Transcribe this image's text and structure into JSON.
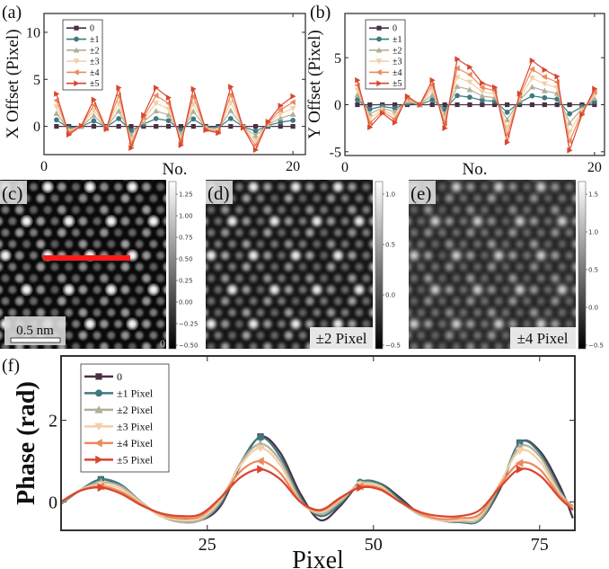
{
  "panels": {
    "a": "(a)",
    "b": "(b)",
    "c": "(c)",
    "d": "(d)",
    "e": "(e)",
    "f": "(f)"
  },
  "series_colors": [
    "#4a3044",
    "#3d7a7e",
    "#b3ae98",
    "#f2cfa6",
    "#ea8a5a",
    "#d9452f"
  ],
  "series_markers": [
    "square",
    "circle",
    "triangle-up",
    "triangle-down",
    "triangle-left",
    "triangle-right"
  ],
  "chart_data": [
    {
      "id": "a",
      "type": "line",
      "xlabel": "No.",
      "ylabel": "X Offset (Pixel)",
      "xlim": [
        0,
        21
      ],
      "ylim": [
        -3,
        12
      ],
      "xticks": [
        0,
        20
      ],
      "yticks": [
        0,
        5,
        10
      ],
      "legend": "top-left",
      "x": [
        1,
        2,
        3,
        4,
        5,
        6,
        7,
        8,
        9,
        10,
        11,
        12,
        13,
        14,
        15,
        16,
        17,
        18,
        19,
        20
      ],
      "series": [
        {
          "name": "0",
          "values": [
            0,
            0,
            0,
            0,
            0,
            0,
            0,
            0,
            0,
            0,
            0,
            0,
            0,
            0,
            0,
            0,
            0,
            0,
            0,
            0
          ]
        },
        {
          "name": "±1",
          "values": [
            0.69,
            -0.17,
            0.01,
            0.57,
            -0.06,
            0.82,
            -0.46,
            0.24,
            0.82,
            0.61,
            -0.4,
            0.79,
            -0.08,
            -0.14,
            0.84,
            -0.03,
            -0.5,
            0.1,
            0.44,
            0.64
          ]
        },
        {
          "name": "±2",
          "values": [
            1.38,
            -0.35,
            0.02,
            1.14,
            -0.12,
            1.64,
            -0.92,
            0.48,
            1.64,
            1.22,
            -0.8,
            1.59,
            -0.16,
            -0.28,
            1.68,
            -0.06,
            -1.0,
            0.2,
            0.88,
            1.28
          ]
        },
        {
          "name": "±3",
          "values": [
            2.07,
            -0.52,
            0.04,
            1.7,
            -0.18,
            2.46,
            -1.38,
            0.72,
            2.46,
            1.84,
            -1.2,
            2.38,
            -0.24,
            -0.42,
            2.52,
            -0.09,
            -1.5,
            0.3,
            1.32,
            1.92
          ]
        },
        {
          "name": "±4",
          "values": [
            2.76,
            -0.7,
            0.05,
            2.27,
            -0.24,
            3.28,
            -1.84,
            0.96,
            3.28,
            2.45,
            -1.6,
            3.18,
            -0.32,
            -0.56,
            3.36,
            -0.12,
            -2.0,
            0.4,
            1.76,
            2.56
          ]
        },
        {
          "name": "±5",
          "values": [
            3.45,
            -0.87,
            0.06,
            2.84,
            -0.3,
            4.1,
            -2.3,
            1.2,
            4.1,
            3.06,
            -2.0,
            3.97,
            -0.4,
            -0.7,
            4.2,
            -0.15,
            -2.5,
            0.5,
            2.2,
            3.2
          ]
        }
      ]
    },
    {
      "id": "b",
      "type": "line",
      "xlabel": "No.",
      "ylabel": "Y Offset (Pixel)",
      "xlim": [
        0,
        20.8
      ],
      "ylim": [
        -5.4,
        9.7
      ],
      "xticks": [
        0,
        20
      ],
      "yticks": [
        -5,
        0,
        5
      ],
      "legend": "top-left",
      "x": [
        1,
        2,
        3,
        4,
        5,
        6,
        7,
        8,
        9,
        10,
        11,
        12,
        13,
        14,
        15,
        16,
        17,
        18,
        19,
        20
      ],
      "series": [
        {
          "name": "0",
          "values": [
            0,
            0,
            0,
            0,
            0,
            0,
            0,
            0,
            0,
            0,
            0,
            0,
            0,
            0,
            0,
            0,
            0,
            0,
            0,
            0
          ]
        },
        {
          "name": "±1",
          "values": [
            0.52,
            -0.48,
            -0.18,
            -0.38,
            0.18,
            0,
            0.52,
            -0.5,
            0.97,
            0.8,
            0.46,
            0.37,
            -0.8,
            0.24,
            0.94,
            0.74,
            0.6,
            -0.97,
            -0.21,
            0.34
          ]
        },
        {
          "name": "±2",
          "values": [
            1.04,
            -0.96,
            -0.36,
            -0.76,
            0.36,
            0,
            1.04,
            -1.0,
            1.94,
            1.6,
            0.92,
            0.74,
            -1.6,
            0.48,
            1.88,
            1.48,
            1.2,
            -1.94,
            -0.42,
            0.68
          ]
        },
        {
          "name": "±3",
          "values": [
            1.56,
            -1.44,
            -0.54,
            -1.14,
            0.54,
            0,
            1.56,
            -1.5,
            2.91,
            2.4,
            1.38,
            1.11,
            -2.4,
            0.72,
            2.82,
            2.22,
            1.8,
            -2.91,
            -0.63,
            1.02
          ]
        },
        {
          "name": "±4",
          "values": [
            2.08,
            -1.92,
            -0.72,
            -1.52,
            0.72,
            0,
            2.08,
            -2.0,
            3.88,
            3.2,
            1.84,
            1.48,
            -3.2,
            0.96,
            3.76,
            2.96,
            2.4,
            -3.88,
            -0.84,
            1.36
          ]
        },
        {
          "name": "±5",
          "values": [
            2.6,
            -2.4,
            -0.9,
            -1.9,
            0.9,
            0,
            2.6,
            -2.5,
            4.85,
            4.0,
            2.3,
            1.85,
            -4.0,
            1.2,
            4.7,
            3.7,
            3.0,
            -4.85,
            -1.05,
            1.7
          ]
        }
      ]
    },
    {
      "id": "f",
      "type": "line",
      "xlabel": "Pixel",
      "ylabel": "Phase (rad)",
      "xlim": [
        3,
        80.3
      ],
      "ylim": [
        -0.7,
        3.58
      ],
      "xticks": [
        25,
        50,
        75
      ],
      "yticks": [
        0,
        2
      ],
      "legend": "top-left",
      "x": [
        3,
        6,
        9,
        12,
        15,
        18,
        21,
        24,
        27,
        30,
        33,
        36,
        39,
        42,
        45,
        48,
        51,
        54,
        57,
        60,
        63,
        66,
        69,
        72,
        75,
        78,
        80
      ],
      "series": [
        {
          "name": "0",
          "values": [
            -0.05,
            0.3,
            0.55,
            0.4,
            0.0,
            -0.35,
            -0.42,
            -0.45,
            -0.1,
            0.9,
            1.6,
            1.2,
            0.2,
            -0.45,
            -0.1,
            0.45,
            0.45,
            0.1,
            -0.3,
            -0.45,
            -0.5,
            -0.45,
            0.3,
            1.45,
            1.25,
            0.4,
            -0.4
          ]
        },
        {
          "name": "±1 Pixel",
          "values": [
            -0.05,
            0.3,
            0.55,
            0.42,
            0.0,
            -0.35,
            -0.45,
            -0.45,
            -0.05,
            0.95,
            1.58,
            1.1,
            0.1,
            -0.35,
            -0.05,
            0.48,
            0.45,
            0.05,
            -0.3,
            -0.45,
            -0.5,
            -0.45,
            0.35,
            1.45,
            1.2,
            0.3,
            -0.2
          ]
        },
        {
          "name": "±2 Pixel",
          "values": [
            -0.03,
            0.3,
            0.48,
            0.38,
            0.0,
            -0.35,
            -0.5,
            -0.45,
            0.0,
            0.95,
            1.42,
            1.0,
            0.05,
            -0.3,
            0.0,
            0.45,
            0.4,
            0.0,
            -0.32,
            -0.45,
            -0.48,
            -0.42,
            0.4,
            1.35,
            1.12,
            0.25,
            -0.15
          ]
        },
        {
          "name": "±3 Pixel",
          "values": [
            0.0,
            0.3,
            0.42,
            0.32,
            -0.02,
            -0.35,
            -0.45,
            -0.4,
            0.05,
            0.9,
            1.32,
            0.9,
            0.0,
            -0.25,
            0.05,
            0.42,
            0.38,
            0.0,
            -0.3,
            -0.45,
            -0.45,
            -0.35,
            0.45,
            1.25,
            1.0,
            0.2,
            -0.12
          ]
        },
        {
          "name": "±4 Pixel",
          "values": [
            0.0,
            0.28,
            0.38,
            0.25,
            -0.05,
            -0.3,
            -0.4,
            -0.35,
            0.1,
            0.75,
            1.0,
            0.7,
            0.0,
            -0.22,
            0.08,
            0.38,
            0.33,
            0.0,
            -0.28,
            -0.42,
            -0.4,
            -0.3,
            0.4,
            0.95,
            0.8,
            0.15,
            -0.1
          ]
        },
        {
          "name": "±5 Pixel",
          "values": [
            0.0,
            0.28,
            0.35,
            0.2,
            -0.08,
            -0.28,
            -0.35,
            -0.3,
            0.1,
            0.6,
            0.8,
            0.55,
            0.0,
            -0.2,
            0.1,
            0.35,
            0.3,
            0.0,
            -0.25,
            -0.35,
            -0.35,
            -0.2,
            0.35,
            0.8,
            0.65,
            0.1,
            -0.2
          ]
        }
      ]
    }
  ],
  "images": {
    "c": {
      "colorbar_ticks": [
        "1.25",
        "1.00",
        "0.75",
        "0.50",
        "0.25",
        "0.00",
        "−0.25",
        "−0.50"
      ],
      "scalebar": "0.5 nm",
      "corner_label": "0",
      "line_color": "#ff1a1a"
    },
    "d": {
      "colorbar_ticks": [
        "1.0",
        "0.5",
        "0.0",
        "−0.5"
      ],
      "annotation": "±2 Pixel"
    },
    "e": {
      "colorbar_ticks": [
        "1.5",
        "1.0",
        "0.5",
        "0.0",
        "−0.5"
      ],
      "annotation": "±4 Pixel"
    }
  }
}
